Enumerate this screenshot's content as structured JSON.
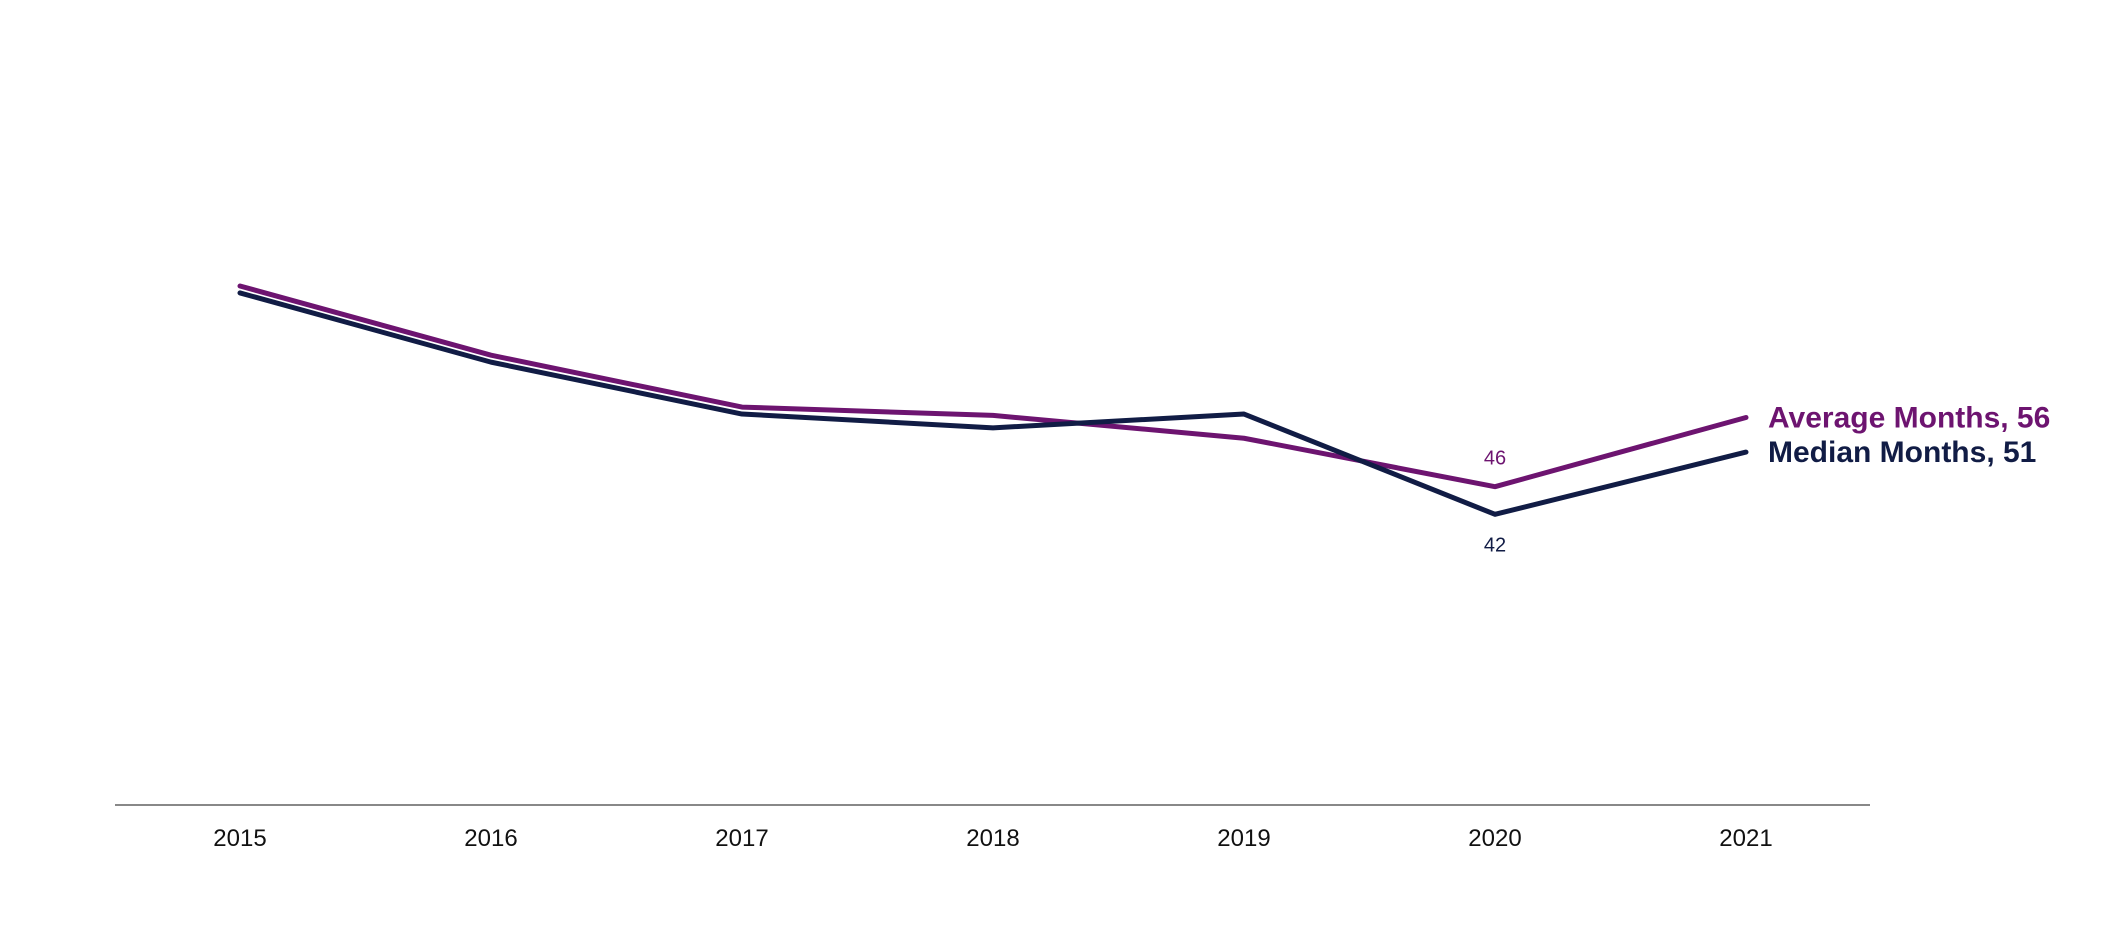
{
  "chart_data": {
    "type": "line",
    "title": "",
    "xlabel": "",
    "ylabel": "",
    "x": [
      "2015",
      "2016",
      "2017",
      "2018",
      "2019",
      "2020",
      "2021"
    ],
    "ylim": [
      0,
      100
    ],
    "grid": false,
    "legend": "end-of-line labels",
    "series": [
      {
        "name": "Average Months",
        "end_label": "Average Months, 56",
        "color": "#6d1470",
        "values": [
          75,
          65,
          57.5,
          56.3,
          53,
          46,
          56
        ],
        "data_labels": [
          {
            "index": 5,
            "text": "46",
            "position": "above"
          }
        ]
      },
      {
        "name": "Median Months",
        "end_label": "Median Months, 51",
        "color": "#111c45",
        "values": [
          74,
          64,
          56.5,
          54.5,
          56.5,
          42,
          51
        ],
        "data_labels": [
          {
            "index": 5,
            "text": "42",
            "position": "below"
          }
        ]
      }
    ]
  }
}
